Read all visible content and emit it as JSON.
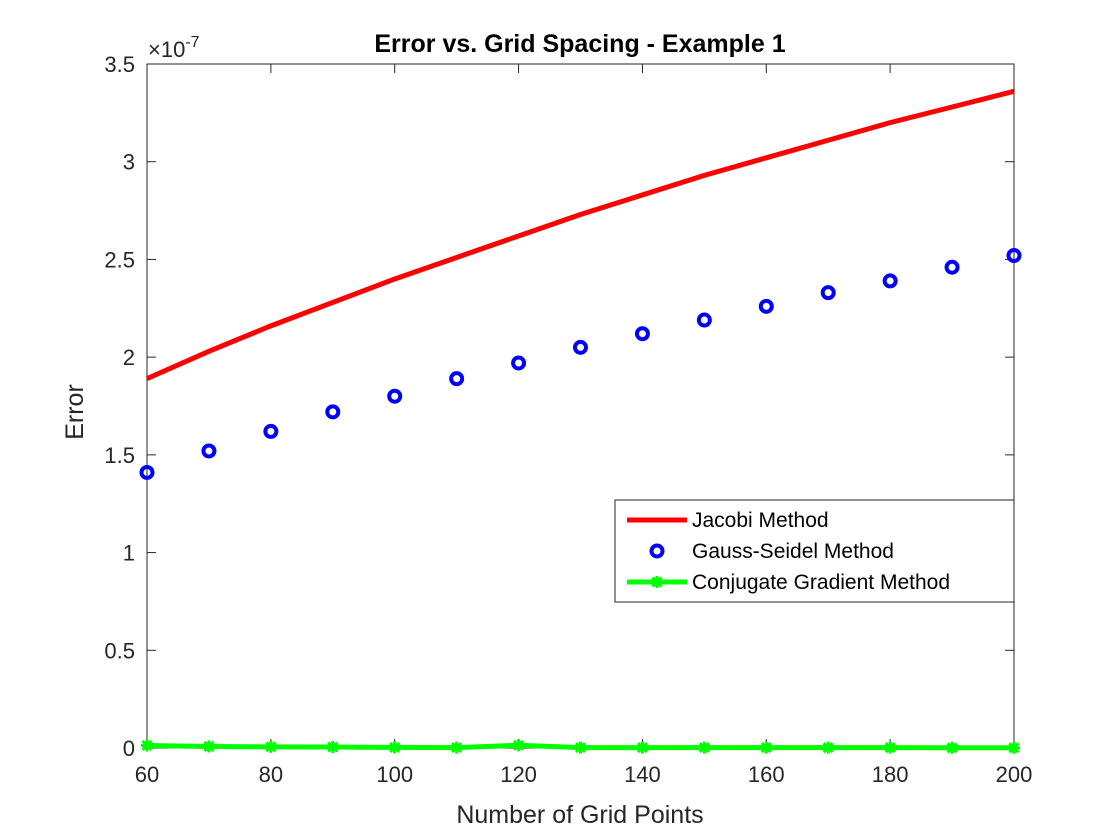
{
  "chart_data": {
    "type": "line",
    "title": "Error vs. Grid Spacing - Example 1",
    "xlabel": "Number of Grid Points",
    "ylabel": "Error",
    "y_exponent_base": "×10",
    "y_exponent": "-7",
    "xlim": [
      60,
      200
    ],
    "ylim": [
      0,
      3.5
    ],
    "xticks": [
      60,
      80,
      100,
      120,
      140,
      160,
      180,
      200
    ],
    "yticks": [
      0,
      0.5,
      1,
      1.5,
      2,
      2.5,
      3,
      3.5
    ],
    "grid": false,
    "legend_position": "middle-right",
    "x": [
      60,
      70,
      80,
      90,
      100,
      110,
      120,
      130,
      140,
      150,
      160,
      170,
      180,
      190,
      200
    ],
    "series": [
      {
        "name": "Jacobi Method",
        "style": "line",
        "color": "#ff0000",
        "values": [
          1.89,
          2.03,
          2.16,
          2.28,
          2.4,
          2.51,
          2.62,
          2.73,
          2.83,
          2.93,
          3.02,
          3.11,
          3.2,
          3.28,
          3.36
        ]
      },
      {
        "name": "Gauss-Seidel Method",
        "style": "markers",
        "marker": "circle",
        "color": "#0000ff",
        "values": [
          1.41,
          1.52,
          1.62,
          1.72,
          1.8,
          1.89,
          1.97,
          2.05,
          2.12,
          2.19,
          2.26,
          2.33,
          2.39,
          2.46,
          2.52
        ]
      },
      {
        "name": "Conjugate Gradient Method",
        "style": "line-markers",
        "marker": "star",
        "color": "#00ff00",
        "values": [
          0.013,
          0.008,
          0.006,
          0.005,
          0.003,
          0.002,
          0.014,
          0.002,
          0.002,
          0.002,
          0.002,
          0.002,
          0.002,
          0.001,
          0.001
        ]
      }
    ]
  }
}
